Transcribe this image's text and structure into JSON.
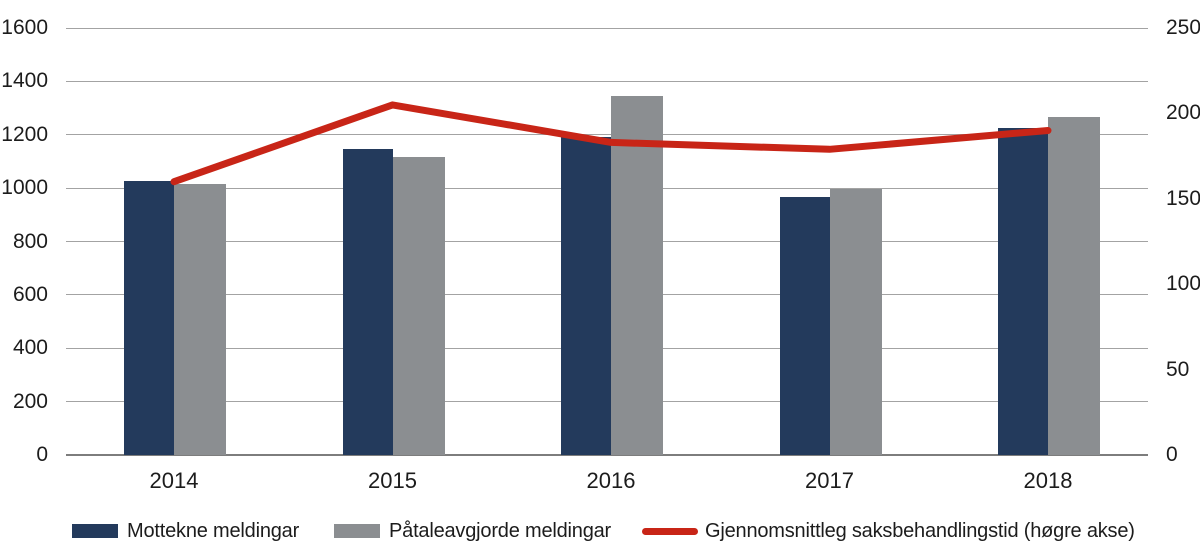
{
  "chart_data": {
    "type": "bar",
    "subtype": "grouped-bars-with-line-overlay",
    "categories": [
      "2014",
      "2015",
      "2016",
      "2017",
      "2018"
    ],
    "series": [
      {
        "name": "Mottekne meldingar",
        "type": "bar",
        "axis": "left",
        "color": "#233a5c",
        "values": [
          1025,
          1145,
          1190,
          965,
          1225
        ]
      },
      {
        "name": "Påtaleavgjorde meldingar",
        "type": "bar",
        "axis": "left",
        "color": "#8b8e91",
        "values": [
          1015,
          1115,
          1345,
          995,
          1265
        ]
      },
      {
        "name": "Gjennomsnittleg saksbehandlingstid (høgre akse)",
        "type": "line",
        "axis": "right",
        "color": "#c82517",
        "values": [
          160,
          205,
          183,
          179,
          190
        ]
      }
    ],
    "left_axis": {
      "min": 0,
      "max": 1600,
      "step": 200,
      "ticks": [
        "0",
        "200",
        "400",
        "600",
        "800",
        "1000",
        "1200",
        "1400",
        "1600"
      ]
    },
    "right_axis": {
      "min": 0,
      "max": 250,
      "step": 50,
      "ticks": [
        "0",
        "50",
        "100",
        "150",
        "200",
        "250"
      ]
    },
    "grid": "horizontal",
    "legend_position": "bottom",
    "title": "",
    "xlabel": "",
    "ylabel": ""
  },
  "colors": {
    "gridline": "#a3a3a3",
    "axis_base": "#7d7d7d",
    "text": "#1c1c1c",
    "background": "#ffffff"
  }
}
